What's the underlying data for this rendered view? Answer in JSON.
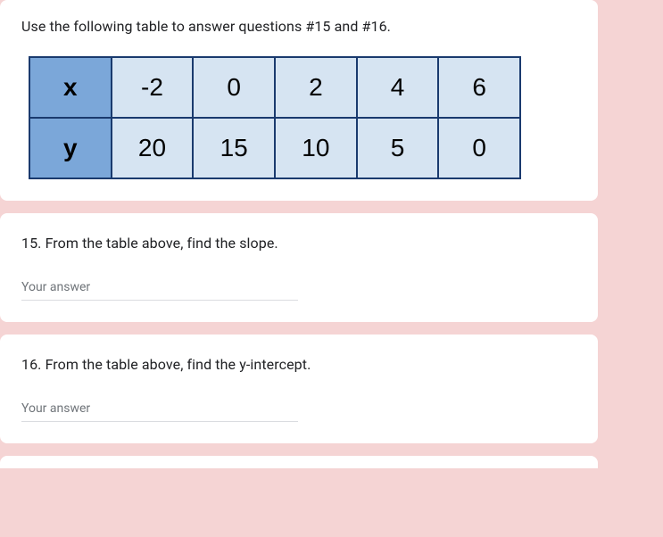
{
  "instruction": {
    "text": "Use the following table to answer questions #15 and #16."
  },
  "table": {
    "type": "table",
    "header_bg": "#7ba7d9",
    "cell_bg": "#d6e4f2",
    "border_color": "#1a3a6e",
    "rows": [
      {
        "label": "x",
        "values": [
          "-2",
          "0",
          "2",
          "4",
          "6"
        ]
      },
      {
        "label": "y",
        "values": [
          "20",
          "15",
          "10",
          "5",
          "0"
        ]
      }
    ]
  },
  "question15": {
    "text": "15. From the table above, find the slope.",
    "placeholder": "Your answer"
  },
  "question16": {
    "text": "16. From the table above, find the y-intercept.",
    "placeholder": "Your answer"
  }
}
